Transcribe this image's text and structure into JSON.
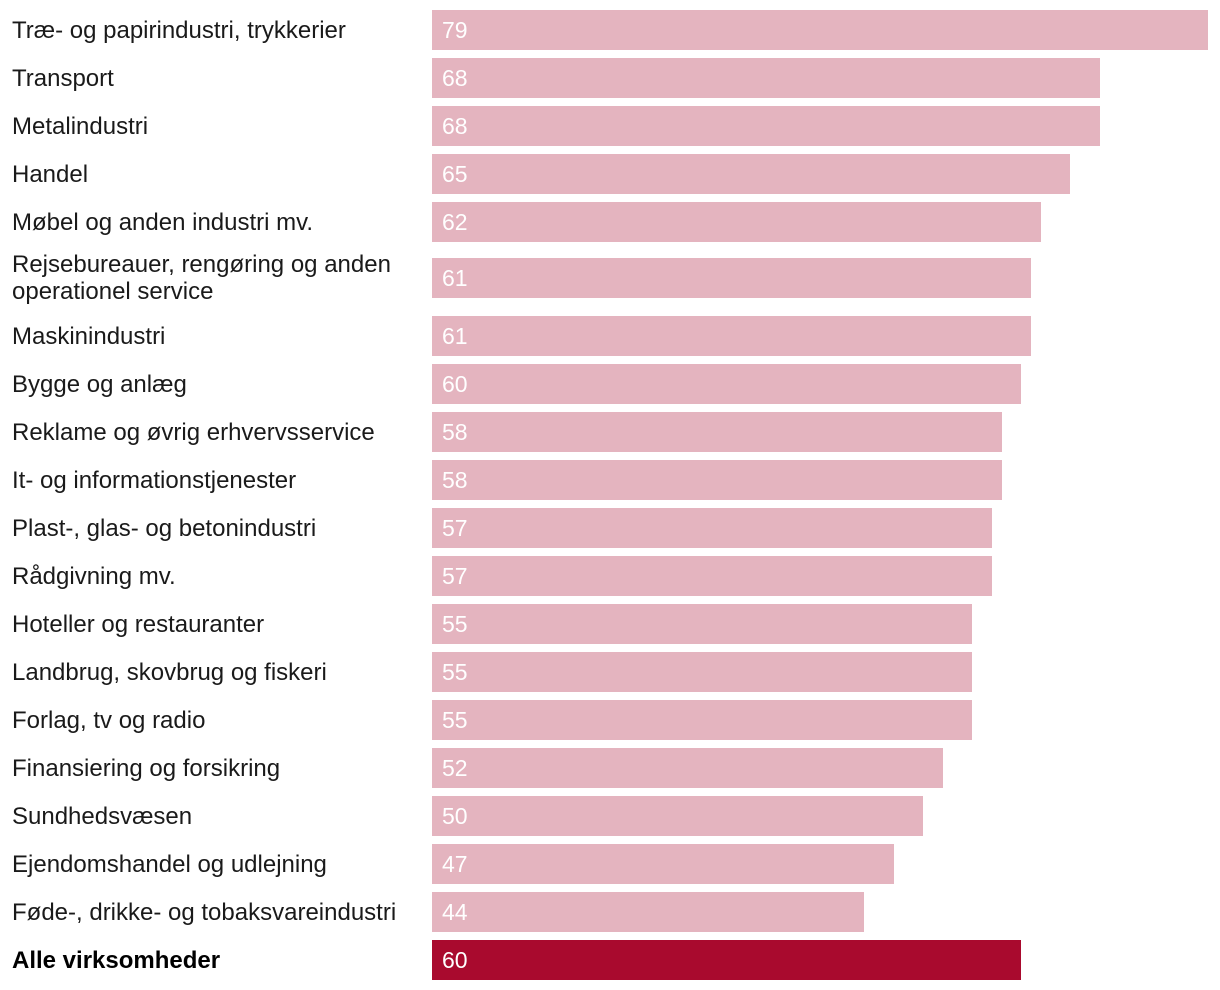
{
  "chart_data": {
    "type": "bar",
    "orientation": "horizontal",
    "title": "",
    "xlabel": "",
    "ylabel": "",
    "xlim": [
      0,
      79
    ],
    "grid": false,
    "colors": {
      "bar": "#e4b4bf",
      "total_bar": "#a90a2e",
      "value_label": "#ffffff",
      "category_label": "#1a1a1a"
    },
    "categories": [
      "Træ- og papirindustri, trykkerier",
      "Transport",
      "Metalindustri",
      "Handel",
      "Møbel og anden industri mv.",
      "Rejsebureauer, rengøring og anden operationel service",
      "Maskinindustri",
      "Bygge og anlæg",
      "Reklame og øvrig erhvervsservice",
      "It- og informationstjenester",
      "Plast-, glas- og betonindustri",
      "Rådgivning mv.",
      "Hoteller og restauranter",
      "Landbrug, skovbrug og fiskeri",
      "Forlag, tv og radio",
      "Finansiering og forsikring",
      "Sundhedsvæsen",
      "Ejendomshandel og udlejning",
      "Føde-, drikke- og tobaksvareindustri",
      "Alle virksomheder"
    ],
    "values": [
      79,
      68,
      68,
      65,
      62,
      61,
      61,
      60,
      58,
      58,
      57,
      57,
      55,
      55,
      55,
      52,
      50,
      47,
      44,
      60
    ],
    "highlight_index": 19
  }
}
